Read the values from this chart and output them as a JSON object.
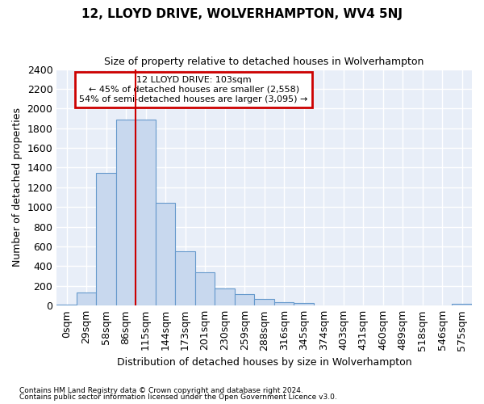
{
  "title": "12, LLOYD DRIVE, WOLVERHAMPTON, WV4 5NJ",
  "subtitle": "Size of property relative to detached houses in Wolverhampton",
  "xlabel": "Distribution of detached houses by size in Wolverhampton",
  "ylabel": "Number of detached properties",
  "footer_line1": "Contains HM Land Registry data © Crown copyright and database right 2024.",
  "footer_line2": "Contains public sector information licensed under the Open Government Licence v3.0.",
  "annotation_line1": "12 LLOYD DRIVE: 103sqm",
  "annotation_line2": "← 45% of detached houses are smaller (2,558)",
  "annotation_line3": "54% of semi-detached houses are larger (3,095) →",
  "bar_color": "#c8d8ee",
  "bar_edge_color": "#6699cc",
  "background_color": "#ffffff",
  "plot_bg_color": "#e8eef8",
  "grid_color": "#ffffff",
  "annotation_box_edgecolor": "#cc0000",
  "annotation_box_facecolor": "#ffffff",
  "vline_color": "#cc0000",
  "categories": [
    "0sqm",
    "29sqm",
    "58sqm",
    "86sqm",
    "115sqm",
    "144sqm",
    "173sqm",
    "201sqm",
    "230sqm",
    "259sqm",
    "288sqm",
    "316sqm",
    "345sqm",
    "374sqm",
    "403sqm",
    "431sqm",
    "460sqm",
    "489sqm",
    "518sqm",
    "546sqm",
    "575sqm"
  ],
  "values": [
    10,
    130,
    1350,
    1890,
    1890,
    1045,
    550,
    335,
    175,
    115,
    65,
    35,
    25,
    0,
    0,
    0,
    0,
    0,
    0,
    0,
    15
  ],
  "ylim": [
    0,
    2400
  ],
  "yticks": [
    0,
    200,
    400,
    600,
    800,
    1000,
    1200,
    1400,
    1600,
    1800,
    2000,
    2200,
    2400
  ],
  "vline_x": 4,
  "figsize": [
    6.0,
    5.0
  ],
  "dpi": 100
}
